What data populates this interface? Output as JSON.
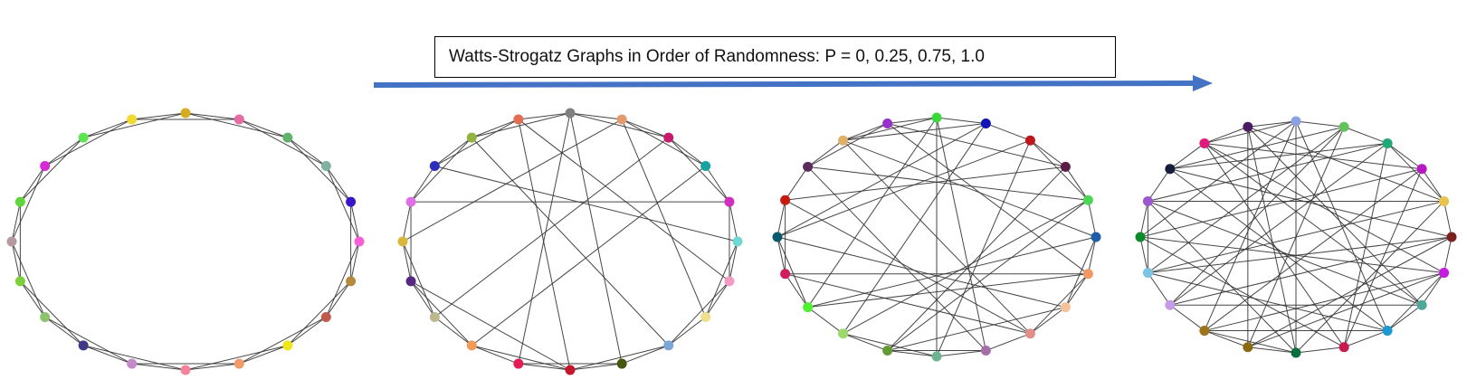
{
  "title": "Watts-Strogatz Graphs in Order of Randomness: P = 0, 0.25, 0.75, 1.0",
  "colors": {
    "arrow": "#4472C4",
    "edge": "#333333",
    "border": "#000000"
  },
  "graphs": [
    {
      "p": 0,
      "nodes": 20,
      "neighbors_per_side": 2,
      "node_colors": [
        "#d6ab1e",
        "#e46ca3",
        "#62b26c",
        "#7fb3a0",
        "#3a14c9",
        "#f55fd8",
        "#b68a3d",
        "#c15a4c",
        "#f0e518",
        "#f29a6c",
        "#f6829c",
        "#c58ac9",
        "#3f3a86",
        "#8cc46e",
        "#7bd13c",
        "#b49aa0",
        "#5fd73c",
        "#d62ad2",
        "#5ce551",
        "#f1da2d"
      ],
      "extra_edges": []
    },
    {
      "p": 0.25,
      "nodes": 20,
      "neighbors_per_side": 2,
      "node_colors": [
        "#808080",
        "#e39b6d",
        "#c91b6e",
        "#14a3a0",
        "#d02ec0",
        "#6fd8d3",
        "#f39bc3",
        "#f0df8c",
        "#7aa7d8",
        "#45560f",
        "#c7162a",
        "#e61b53",
        "#f19b55",
        "#bdb88d",
        "#552884",
        "#d9b93c",
        "#e06ee8",
        "#2d2dbd",
        "#92b33f",
        "#e36d52"
      ],
      "extra_edges": [
        [
          0,
          11
        ],
        [
          0,
          9
        ],
        [
          1,
          15
        ],
        [
          2,
          13
        ],
        [
          19,
          6
        ],
        [
          18,
          8
        ],
        [
          17,
          5
        ],
        [
          3,
          12
        ],
        [
          4,
          16
        ],
        [
          14,
          10
        ],
        [
          7,
          1
        ],
        [
          19,
          10
        ]
      ]
    },
    {
      "p": 0.75,
      "nodes": 20,
      "neighbors_per_side": 2,
      "node_colors": [
        "#3ad83d",
        "#1212b8",
        "#c0161d",
        "#5a1d45",
        "#4ad754",
        "#1e5ea8",
        "#f19863",
        "#f5c29a",
        "#e38e87",
        "#a56ea6",
        "#6db390",
        "#629a33",
        "#9cd86a",
        "#4ef030",
        "#d21a5e",
        "#0a5a6e",
        "#c81a10",
        "#5c2a5c",
        "#e0b067",
        "#9831c9"
      ],
      "extra_edges": [
        [
          0,
          10
        ],
        [
          0,
          13
        ],
        [
          1,
          12
        ],
        [
          2,
          15
        ],
        [
          3,
          16
        ],
        [
          4,
          17
        ],
        [
          5,
          18
        ],
        [
          6,
          19
        ],
        [
          7,
          11
        ],
        [
          8,
          14
        ],
        [
          9,
          0
        ],
        [
          10,
          2
        ],
        [
          11,
          3
        ],
        [
          12,
          4
        ],
        [
          13,
          5
        ],
        [
          14,
          6
        ],
        [
          15,
          7
        ],
        [
          16,
          8
        ],
        [
          17,
          9
        ],
        [
          18,
          1
        ],
        [
          19,
          3
        ],
        [
          1,
          15
        ],
        [
          4,
          11
        ],
        [
          6,
          13
        ],
        [
          8,
          18
        ]
      ]
    },
    {
      "p": 1.0,
      "nodes": 20,
      "neighbors_per_side": 2,
      "node_colors": [
        "#8aa0e0",
        "#62c35c",
        "#1daa74",
        "#b618c2",
        "#e8c44f",
        "#7b1f1f",
        "#c41ee0",
        "#4fa89a",
        "#1c99d0",
        "#c81b4e",
        "#0c6e3e",
        "#8a6a10",
        "#a0731d",
        "#c69ae8",
        "#7dc3e2",
        "#0b8a2a",
        "#9b58cf",
        "#171c3b",
        "#e01a7d",
        "#4a1d63"
      ],
      "extra_edges": [
        [
          0,
          10
        ],
        [
          0,
          12
        ],
        [
          0,
          15
        ],
        [
          1,
          11
        ],
        [
          1,
          14
        ],
        [
          1,
          17
        ],
        [
          2,
          13
        ],
        [
          2,
          16
        ],
        [
          2,
          9
        ],
        [
          3,
          12
        ],
        [
          3,
          18
        ],
        [
          3,
          15
        ],
        [
          4,
          14
        ],
        [
          4,
          16
        ],
        [
          4,
          19
        ],
        [
          5,
          13
        ],
        [
          5,
          17
        ],
        [
          5,
          11
        ],
        [
          6,
          18
        ],
        [
          6,
          15
        ],
        [
          6,
          12
        ],
        [
          7,
          19
        ],
        [
          7,
          16
        ],
        [
          7,
          13
        ],
        [
          8,
          17
        ],
        [
          8,
          14
        ],
        [
          8,
          0
        ],
        [
          9,
          18
        ],
        [
          9,
          3
        ],
        [
          10,
          19
        ],
        [
          10,
          4
        ],
        [
          11,
          6
        ],
        [
          12,
          8
        ],
        [
          13,
          1
        ],
        [
          14,
          5
        ],
        [
          15,
          9
        ],
        [
          16,
          10
        ],
        [
          17,
          2
        ],
        [
          18,
          7
        ],
        [
          19,
          11
        ]
      ]
    }
  ]
}
